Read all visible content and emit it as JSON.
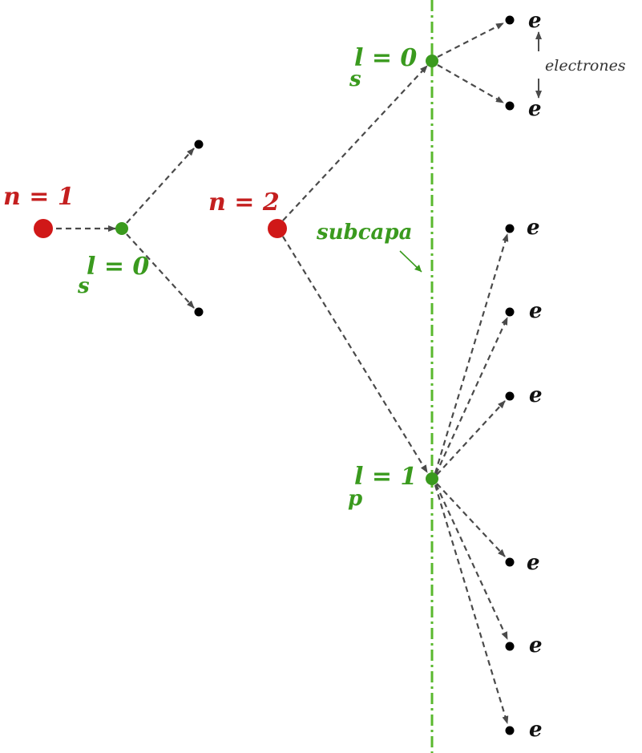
{
  "shells": [
    {
      "label": "n = 1"
    },
    {
      "label": "n = 2"
    }
  ],
  "subshells": [
    {
      "l_label": "l = 0",
      "type": "s"
    },
    {
      "l_label": "l = 0",
      "type": "s"
    },
    {
      "l_label": "l = 1",
      "type": "p"
    }
  ],
  "electron_label": "e",
  "annotations": {
    "electrons": "electrones",
    "subshell": "subcapa"
  },
  "colors": {
    "shell": "#d01818",
    "subshell": "#3a9a1e",
    "electron": "#000000",
    "arrow": "#4a4a4a",
    "axis": "#5ab82e"
  }
}
